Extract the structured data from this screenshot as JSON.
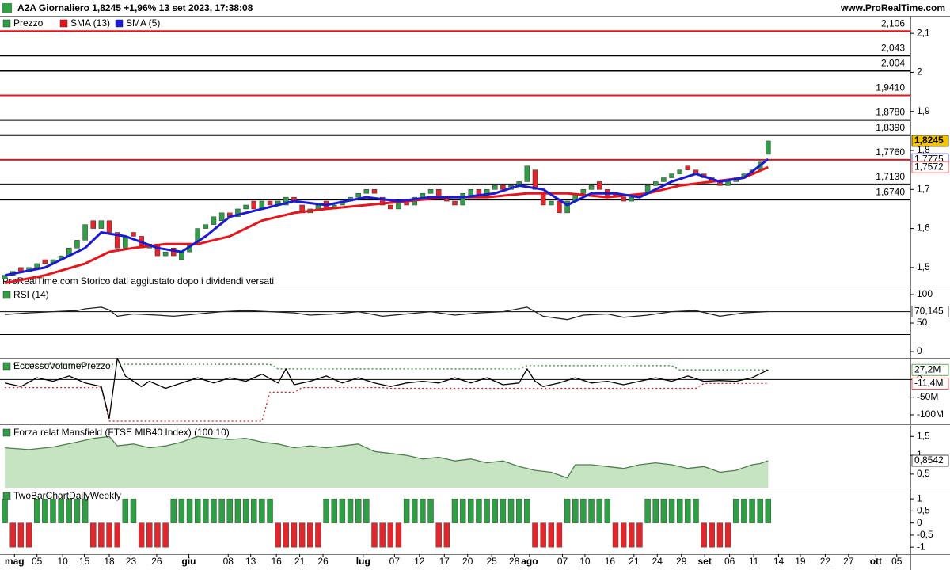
{
  "chart_data": [
    {
      "type": "candlestick",
      "title": "A2A Giornaliero 1,8245 +1,96% 13 set 2023, 17:38:08",
      "source": "www.ProRealTime.com",
      "note": "ProRealTime.com Storico dati aggiustato dopo i dividendi versati",
      "candles": {
        "name": "Prezzo",
        "up_color": "#2f9e44",
        "down_color": "#e3262b",
        "open": [
          1.47,
          1.48,
          1.5,
          1.49,
          1.5,
          1.52,
          1.51,
          1.52,
          1.53,
          1.55,
          1.57,
          1.62,
          1.6,
          1.62,
          1.59,
          1.55,
          1.59,
          1.58,
          1.55,
          1.56,
          1.53,
          1.55,
          1.52,
          1.54,
          1.56,
          1.6,
          1.61,
          1.62,
          1.64,
          1.63,
          1.65,
          1.67,
          1.65,
          1.67,
          1.66,
          1.66,
          1.68,
          1.66,
          1.64,
          1.65,
          1.67,
          1.65,
          1.66,
          1.67,
          1.68,
          1.69,
          1.7,
          1.68,
          1.66,
          1.65,
          1.67,
          1.66,
          1.68,
          1.69,
          1.7,
          1.68,
          1.67,
          1.66,
          1.68,
          1.7,
          1.68,
          1.7,
          1.71,
          1.7,
          1.71,
          1.72,
          1.75,
          1.69,
          1.66,
          1.67,
          1.64,
          1.67,
          1.69,
          1.7,
          1.72,
          1.7,
          1.69,
          1.68,
          1.67,
          1.68,
          1.69,
          1.71,
          1.72,
          1.73,
          1.74,
          1.76,
          1.75,
          1.74,
          1.73,
          1.72,
          1.71,
          1.72,
          1.73,
          1.74,
          1.75,
          1.79
        ],
        "close": [
          1.48,
          1.49,
          1.49,
          1.5,
          1.51,
          1.51,
          1.52,
          1.53,
          1.55,
          1.57,
          1.61,
          1.6,
          1.62,
          1.59,
          1.55,
          1.58,
          1.58,
          1.55,
          1.56,
          1.53,
          1.54,
          1.53,
          1.54,
          1.56,
          1.6,
          1.61,
          1.63,
          1.64,
          1.63,
          1.65,
          1.66,
          1.65,
          1.67,
          1.66,
          1.67,
          1.68,
          1.67,
          1.64,
          1.65,
          1.66,
          1.65,
          1.66,
          1.67,
          1.68,
          1.69,
          1.7,
          1.69,
          1.66,
          1.65,
          1.67,
          1.66,
          1.68,
          1.69,
          1.7,
          1.68,
          1.67,
          1.66,
          1.69,
          1.7,
          1.68,
          1.7,
          1.71,
          1.7,
          1.71,
          1.72,
          1.76,
          1.7,
          1.66,
          1.67,
          1.64,
          1.67,
          1.69,
          1.7,
          1.71,
          1.7,
          1.68,
          1.68,
          1.67,
          1.68,
          1.69,
          1.71,
          1.72,
          1.73,
          1.74,
          1.75,
          1.75,
          1.74,
          1.73,
          1.72,
          1.71,
          1.72,
          1.73,
          1.74,
          1.75,
          1.77,
          1.8245
        ]
      },
      "series": [
        {
          "name": "SMA (13)",
          "color": "#e8141c",
          "x": [
            0,
            5,
            10,
            13,
            16,
            20,
            24,
            28,
            32,
            36,
            40,
            45,
            50,
            55,
            60,
            65,
            70,
            75,
            80,
            84,
            88,
            92,
            95
          ],
          "values": [
            1.46,
            1.48,
            1.51,
            1.54,
            1.55,
            1.56,
            1.56,
            1.58,
            1.62,
            1.64,
            1.65,
            1.66,
            1.67,
            1.68,
            1.68,
            1.69,
            1.69,
            1.68,
            1.69,
            1.71,
            1.72,
            1.73,
            1.7572
          ]
        },
        {
          "name": "SMA (5)",
          "color": "#1a1ad6",
          "x": [
            0,
            5,
            10,
            12,
            15,
            19,
            22,
            25,
            28,
            32,
            36,
            40,
            45,
            49,
            53,
            57,
            61,
            64,
            67,
            70,
            73,
            76,
            79,
            83,
            86,
            89,
            92,
            95
          ],
          "values": [
            1.48,
            1.5,
            1.55,
            1.59,
            1.58,
            1.55,
            1.54,
            1.58,
            1.63,
            1.65,
            1.67,
            1.66,
            1.68,
            1.67,
            1.68,
            1.68,
            1.69,
            1.71,
            1.7,
            1.66,
            1.69,
            1.69,
            1.68,
            1.72,
            1.74,
            1.72,
            1.73,
            1.7775
          ]
        }
      ],
      "levels": [
        {
          "value": 2.106,
          "label": "2,106",
          "color": "#e8141c"
        },
        {
          "value": 2.043,
          "label": "2,043",
          "color": "#000000"
        },
        {
          "value": 2.004,
          "label": "2,004",
          "color": "#000000"
        },
        {
          "value": 1.941,
          "label": "1,9410",
          "color": "#e8141c"
        },
        {
          "value": 1.878,
          "label": "1,8780",
          "color": "#000000"
        },
        {
          "value": 1.839,
          "label": "1,8390",
          "color": "#000000"
        },
        {
          "value": 1.776,
          "label": "1,7760",
          "color": "#e8141c"
        },
        {
          "value": 1.713,
          "label": "1,7130",
          "color": "#000000"
        },
        {
          "value": 1.674,
          "label": "1,6740",
          "color": "#000000"
        }
      ],
      "badges": [
        {
          "value": 1.8245,
          "label": "1,8245",
          "color": "#000000",
          "background": "#f5c400"
        },
        {
          "value": 1.7775,
          "label": "1,7775",
          "color": "#1a1ad6",
          "background": "#ffffff"
        },
        {
          "value": 1.7572,
          "label": "1,7572",
          "color": "#e8141c",
          "background": "#ffffff"
        }
      ],
      "ylim": [
        1.451,
        2.145
      ],
      "yticks": [
        {
          "value": 2.1,
          "label": "2,1"
        },
        2,
        {
          "value": 1.9,
          "label": "1,9"
        },
        {
          "value": 1.8,
          "label": "1,8"
        },
        {
          "value": 1.7,
          "label": "1,7"
        },
        {
          "value": 1.6,
          "label": "1,6"
        },
        {
          "value": 1.5,
          "label": "1,5"
        }
      ],
      "xlim": [
        -0.6,
        112.7
      ],
      "xticks": [
        {
          "value": 1.2,
          "label": "mag"
        },
        {
          "value": 4.0,
          "label": "05"
        },
        {
          "value": 7.2,
          "label": "10"
        },
        {
          "value": 9.9,
          "label": "15"
        },
        {
          "value": 13.0,
          "label": "18"
        },
        {
          "value": 15.7,
          "label": "23"
        },
        {
          "value": 18.9,
          "label": "26"
        },
        {
          "value": 22.9,
          "label": "giu"
        },
        {
          "value": 27.8,
          "label": "08"
        },
        {
          "value": 30.6,
          "label": "13"
        },
        {
          "value": 33.8,
          "label": "16"
        },
        {
          "value": 36.7,
          "label": "21"
        },
        {
          "value": 39.6,
          "label": "26"
        },
        {
          "value": 44.6,
          "label": "lug"
        },
        {
          "value": 48.5,
          "label": "07"
        },
        {
          "value": 51.6,
          "label": "12"
        },
        {
          "value": 54.7,
          "label": "17"
        },
        {
          "value": 57.6,
          "label": "20"
        },
        {
          "value": 60.6,
          "label": "25"
        },
        {
          "value": 63.4,
          "label": "28"
        },
        {
          "value": 65.3,
          "label": "ago"
        },
        {
          "value": 69.4,
          "label": "07"
        },
        {
          "value": 72.2,
          "label": "10"
        },
        {
          "value": 75.3,
          "label": "16"
        },
        {
          "value": 78.3,
          "label": "21"
        },
        {
          "value": 81.2,
          "label": "24"
        },
        {
          "value": 84.2,
          "label": "29"
        },
        {
          "value": 87.1,
          "label": "set"
        },
        {
          "value": 90.2,
          "label": "06"
        },
        {
          "value": 93.2,
          "label": "11"
        },
        {
          "value": 96.3,
          "label": "14"
        },
        {
          "value": 99.0,
          "label": "19"
        },
        {
          "value": 102.1,
          "label": "22"
        },
        {
          "value": 105.0,
          "label": "27"
        },
        {
          "value": 108.4,
          "label": "ott"
        },
        {
          "value": 111.0,
          "label": "05"
        }
      ]
    },
    {
      "type": "line",
      "title": "RSI (14)",
      "series": [
        {
          "color": "#222222",
          "x": [
            0,
            3,
            6,
            9,
            10,
            12,
            13,
            14,
            16,
            19,
            21,
            24,
            27,
            30,
            33,
            36,
            38,
            41,
            44,
            47,
            50,
            53,
            56,
            59,
            62,
            65,
            67,
            70,
            72,
            75,
            77,
            80,
            83,
            86,
            89,
            92,
            95
          ],
          "values": [
            65,
            68,
            70,
            72,
            75,
            78,
            73,
            62,
            66,
            64,
            62,
            66,
            70,
            72,
            70,
            68,
            64,
            66,
            70,
            62,
            66,
            70,
            64,
            68,
            70,
            78,
            62,
            56,
            64,
            66,
            60,
            64,
            70,
            72,
            62,
            68,
            70.145
          ]
        }
      ],
      "levels": [
        {
          "value": 70,
          "color": "#000000"
        },
        {
          "value": 30,
          "color": "#000000"
        }
      ],
      "badges": [
        {
          "value": 70.145,
          "label": "70,145",
          "color": "#000000",
          "background": "#ffffff"
        }
      ],
      "ylim": [
        -11,
        112.5
      ],
      "yticks": [
        100,
        50,
        0
      ]
    },
    {
      "type": "line",
      "title": "EccessoVolumePrezzo",
      "series": [
        {
          "color": "#1d8a1d",
          "dashed": true,
          "x": [
            0,
            33,
            34,
            64,
            65,
            83,
            84,
            95
          ],
          "values": [
            43,
            43,
            30,
            30,
            39,
            39,
            27.2,
            27.2
          ]
        },
        {
          "color": "#e8141c",
          "dashed": true,
          "x": [
            0,
            12,
            13,
            32,
            33,
            36,
            37,
            47,
            48,
            86,
            87,
            95
          ],
          "values": [
            -23,
            -23,
            -118,
            -118,
            -36,
            -36,
            -23,
            -23,
            -25,
            -25,
            -11.4,
            -11.4
          ]
        },
        {
          "color": "#000000",
          "dashed": false,
          "x": [
            0,
            2,
            4,
            6,
            8,
            10,
            12,
            13,
            14,
            15,
            17,
            18,
            20,
            22,
            24,
            26,
            28,
            30,
            32,
            34,
            35,
            36,
            38,
            40,
            42,
            44,
            46,
            48,
            50,
            52,
            54,
            56,
            58,
            60,
            62,
            64,
            65,
            66,
            67,
            69,
            71,
            73,
            75,
            77,
            79,
            81,
            83,
            85,
            87,
            89,
            91,
            93,
            95
          ],
          "values": [
            -10,
            -20,
            5,
            -5,
            10,
            -10,
            -20,
            -110,
            60,
            10,
            -20,
            -5,
            -25,
            -10,
            5,
            -10,
            5,
            -5,
            15,
            -10,
            30,
            -15,
            -5,
            10,
            -10,
            5,
            -10,
            -20,
            -10,
            -5,
            -10,
            5,
            -10,
            5,
            -15,
            -10,
            30,
            -5,
            -20,
            -10,
            5,
            -10,
            -5,
            -15,
            -5,
            5,
            -5,
            10,
            -5,
            -3,
            -5,
            5,
            27.2
          ]
        }
      ],
      "levels": [
        {
          "value": 0,
          "color": "#000000"
        }
      ],
      "badges": [
        {
          "value": 27.2,
          "label": "27,2M",
          "color": "#1d8a1d",
          "background": "#ffffff"
        },
        {
          "value": -11.4,
          "label": "-11,4M",
          "color": "#e8141c",
          "background": "#ffffff"
        }
      ],
      "ylim": [
        -127,
        59
      ],
      "yticks": [
        0,
        {
          "value": -50,
          "label": "-50M"
        },
        {
          "value": -100,
          "label": "-100M"
        }
      ]
    },
    {
      "type": "area",
      "title": "Forza relat Mansfield (FTSE MIB40 Index) (100 10)",
      "series": [
        {
          "color": "#4f7f4f",
          "fill": "#b9ddb3",
          "x": [
            0,
            3,
            6,
            9,
            11,
            13,
            14,
            16,
            18,
            20,
            22,
            24,
            26,
            28,
            30,
            32,
            34,
            36,
            38,
            40,
            42,
            44,
            46,
            48,
            50,
            52,
            54,
            56,
            58,
            60,
            62,
            64,
            66,
            68,
            70,
            71,
            73,
            75,
            77,
            79,
            81,
            83,
            85,
            87,
            89,
            91,
            93,
            94,
            95
          ],
          "values": [
            1.2,
            1.15,
            1.22,
            1.35,
            1.45,
            1.5,
            1.25,
            1.3,
            1.2,
            1.25,
            1.35,
            1.5,
            1.45,
            1.42,
            1.45,
            1.35,
            1.3,
            1.2,
            1.25,
            1.2,
            1.25,
            1.3,
            1.1,
            1.05,
            1.0,
            0.9,
            0.95,
            0.85,
            0.9,
            0.8,
            0.85,
            0.7,
            0.6,
            0.55,
            0.4,
            0.75,
            0.75,
            0.7,
            0.65,
            0.75,
            0.8,
            0.75,
            0.65,
            0.7,
            0.55,
            0.6,
            0.75,
            0.78,
            0.8542
          ]
        }
      ],
      "badges": [
        {
          "value": 0.8542,
          "label": "0,8542",
          "color": "#000000",
          "background": "#ffffff"
        }
      ],
      "ylim": [
        0.14,
        1.8
      ],
      "yticks": [
        {
          "value": 1.5,
          "label": "1,5"
        },
        1,
        {
          "value": 0.5,
          "label": "0,5"
        }
      ]
    },
    {
      "type": "bar",
      "title": "TwoBarChartDailyWeekly",
      "up_color": "#2f9e44",
      "down_color": "#e3262b",
      "values": [
        1,
        -1,
        -1,
        -1,
        1,
        1,
        1,
        1,
        1,
        1,
        1,
        -1,
        -1,
        -1,
        -1,
        1,
        1,
        -1,
        -1,
        -1,
        -1,
        1,
        1,
        1,
        1,
        1,
        1,
        1,
        1,
        1,
        1,
        1,
        1,
        1,
        -1,
        -1,
        -1,
        -1,
        -1,
        -1,
        1,
        1,
        1,
        1,
        1,
        1,
        -1,
        -1,
        -1,
        -1,
        1,
        1,
        1,
        1,
        -1,
        -1,
        1,
        1,
        1,
        1,
        1,
        1,
        1,
        1,
        1,
        1,
        -1,
        -1,
        -1,
        -1,
        1,
        1,
        1,
        1,
        1,
        1,
        -1,
        -1,
        -1,
        -1,
        1,
        1,
        1,
        1,
        1,
        1,
        1,
        -1,
        -1,
        -1,
        -1,
        1,
        1,
        1,
        1,
        1
      ],
      "ylim": [
        -1.29,
        1.43
      ],
      "yticks": [
        1,
        {
          "value": 0.5,
          "label": "0,5"
        },
        0,
        {
          "value": -0.5,
          "label": "-0,5"
        },
        -1
      ]
    }
  ]
}
